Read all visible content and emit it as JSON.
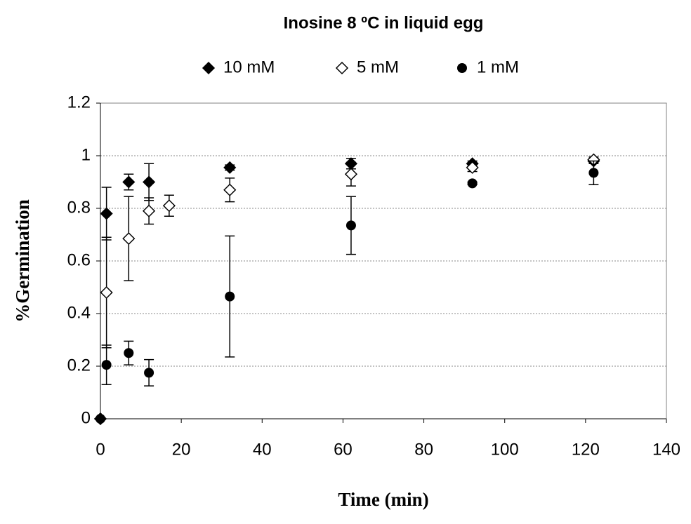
{
  "chart_data": {
    "type": "scatter",
    "title": "Inosine 8 ºC in liquid egg",
    "x_label": "Time (min)",
    "y_label": "%Germination",
    "xlim": [
      0,
      140
    ],
    "xticks": [
      0,
      20,
      40,
      60,
      80,
      100,
      120,
      140
    ],
    "ylim": [
      0,
      1.2
    ],
    "yticks": [
      0,
      0.2,
      0.4,
      0.6,
      0.8,
      1,
      1.2
    ],
    "grid": true,
    "legend": "top",
    "series": [
      {
        "name": "10 mM",
        "color": "#000000",
        "marker": "diamond-filled",
        "x": [
          0,
          1.5,
          7,
          12,
          32,
          62,
          92,
          122
        ],
        "values": [
          0,
          0.78,
          0.9,
          0.9,
          0.955,
          0.97,
          0.97,
          0.98
        ],
        "errors": [
          0,
          0.1,
          0.03,
          0.07,
          0.01,
          0.02,
          0.01,
          0.01
        ]
      },
      {
        "name": "5 mM",
        "color": "#000000",
        "marker": "diamond-open",
        "x": [
          0,
          1.5,
          7,
          12,
          17,
          32,
          62,
          92,
          122
        ],
        "values": [
          0,
          0.48,
          0.685,
          0.79,
          0.81,
          0.87,
          0.93,
          0.955,
          0.985
        ],
        "errors": [
          0,
          0.21,
          0.16,
          0.05,
          0.04,
          0.045,
          0.045,
          0.015,
          0.01
        ]
      },
      {
        "name": "1 mM",
        "color": "#000000",
        "marker": "circle",
        "x": [
          0,
          1.5,
          7,
          12,
          32,
          62,
          92,
          122
        ],
        "values": [
          0,
          0.205,
          0.25,
          0.175,
          0.465,
          0.735,
          0.895,
          0.935
        ],
        "errors": [
          0,
          0.075,
          0.045,
          0.05,
          0.23,
          0.11,
          0.005,
          0.045
        ]
      }
    ]
  }
}
